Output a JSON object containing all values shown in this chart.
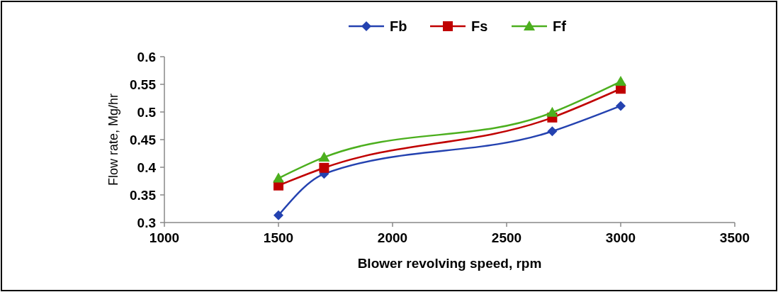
{
  "chart_data": {
    "type": "line",
    "xlabel": "Blower revolving speed, rpm",
    "ylabel": "Flow rate, Mg/hr",
    "x": [
      1500,
      1700,
      2700,
      3000
    ],
    "series": [
      {
        "name": "Fb",
        "color": "#2442b0",
        "values": [
          0.313,
          0.388,
          0.465,
          0.511
        ],
        "marker": "diamond"
      },
      {
        "name": "Fs",
        "color": "#c00000",
        "values": [
          0.367,
          0.399,
          0.49,
          0.542
        ],
        "marker": "square"
      },
      {
        "name": "Ff",
        "color": "#4caf1e",
        "values": [
          0.38,
          0.418,
          0.499,
          0.555
        ],
        "marker": "triangle"
      }
    ],
    "xlim": [
      1000,
      3500
    ],
    "xticks": [
      1000,
      1500,
      2000,
      2500,
      3000,
      3500
    ],
    "ylim": [
      0.3,
      0.6
    ],
    "yticks": [
      0.3,
      0.35,
      0.4,
      0.45,
      0.5,
      0.55,
      0.6
    ],
    "grid": false,
    "legend": "top",
    "line_style": "solid"
  }
}
